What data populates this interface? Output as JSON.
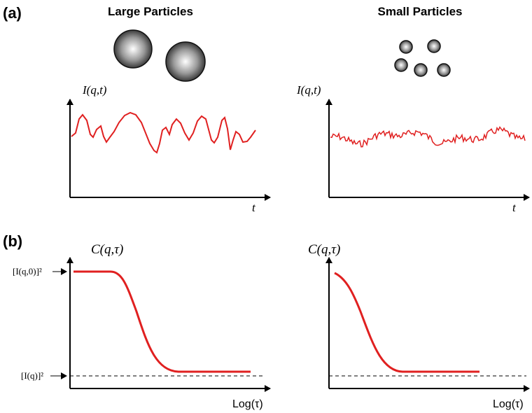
{
  "panel_a": {
    "label": "(a)",
    "large": {
      "title": "Large Particles",
      "y_label": "I(q,t)",
      "x_label": "t"
    },
    "small": {
      "title": "Small Particles",
      "y_label": "I(q,t)",
      "x_label": "t"
    }
  },
  "panel_b": {
    "label": "(b)",
    "large": {
      "y_label": "C(q,τ)",
      "x_label": "Log(τ)",
      "top_level": "[I(q,0)]²",
      "baseline": "[I(q)]²"
    },
    "small": {
      "y_label": "C(q,τ)",
      "x_label": "Log(τ)"
    }
  }
}
